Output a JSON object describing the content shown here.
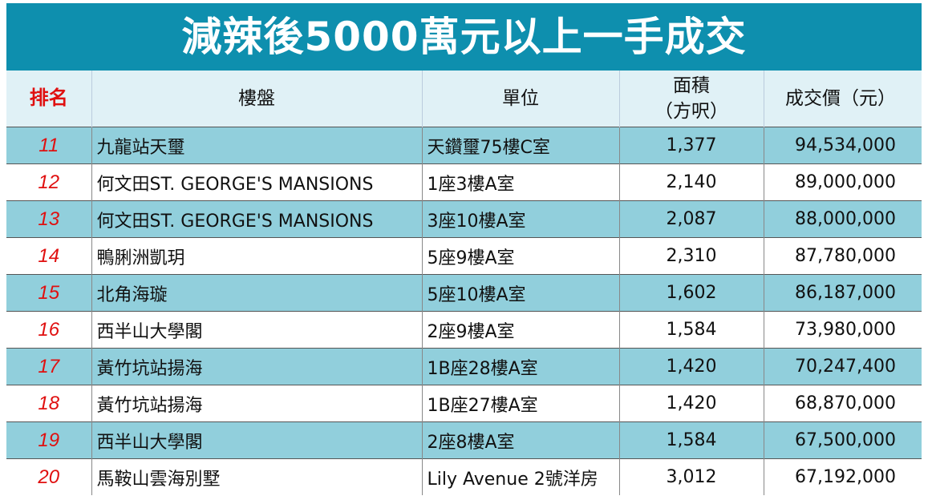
{
  "title": "減辣後5000萬元以上一手成交",
  "table": {
    "header": [
      "排名",
      "樓盤",
      "單位",
      "面積\n（方呎）",
      "成交價（元）"
    ],
    "rows": [
      [
        "11",
        "九龍站天璽",
        "天鑽璽75樓C室",
        "1,377",
        "94,534,000"
      ],
      [
        "12",
        "何文田ST. GEORGE'S MANSIONS",
        "1座3樓A室",
        "2,140",
        "89,000,000"
      ],
      [
        "13",
        "何文田ST. GEORGE'S MANSIONS",
        "3座10樓A室",
        "2,087",
        "88,000,000"
      ],
      [
        "14",
        "鴨脷洲凱玥",
        "5座9樓A室",
        "2,310",
        "87,780,000"
      ],
      [
        "15",
        "北角海璇",
        "5座10樓A室",
        "1,602",
        "86,187,000"
      ],
      [
        "16",
        "西半山大學閣",
        "2座9樓A室",
        "1,584",
        "73,980,000"
      ],
      [
        "17",
        "黃竹坑站揚海",
        "1B座28樓A室",
        "1,420",
        "70,247,400"
      ],
      [
        "18",
        "黃竹坑站揚海",
        "1B座27樓A室",
        "1,420",
        "68,870,000"
      ],
      [
        "19",
        "西半山大學閣",
        "2座8樓A室",
        "1,584",
        "67,500,000"
      ],
      [
        "20",
        "馬鞍山雲海別墅",
        "Lily Avenue 2號洋房",
        "3,012",
        "67,192,000"
      ]
    ]
  }
}
